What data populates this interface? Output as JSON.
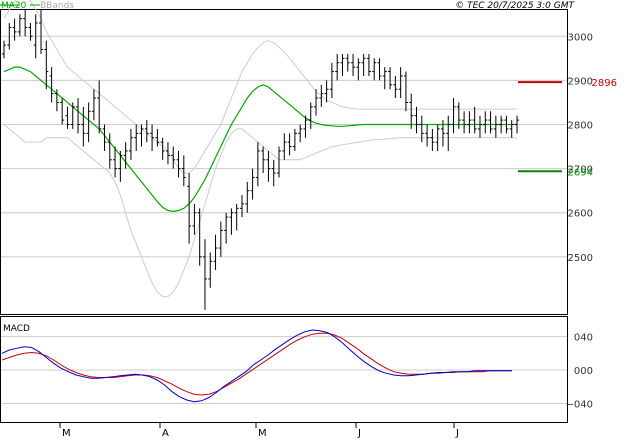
{
  "header": {
    "legend_ma": "MA20",
    "legend_bb": "BBands",
    "copyright": "© TEC 20/7/2025 3:0 GMT"
  },
  "price_panel": {
    "y_ticks": [
      "3000",
      "2900",
      "2800",
      "2700",
      "2600",
      "2500"
    ],
    "resistance_label": "2896",
    "support_label": "2694"
  },
  "macd_panel": {
    "title": "MACD",
    "y_ticks": [
      "040",
      "000",
      "−040"
    ]
  },
  "x_axis": {
    "months": [
      "M",
      "A",
      "M",
      "J",
      "J"
    ]
  },
  "colors": {
    "ma": "#00aa00",
    "bbands": "#cccccc",
    "resistance": "#cc0000",
    "support": "#008800",
    "macd": "#0000cc",
    "signal": "#cc0000",
    "candle": "#000000",
    "grid": "#cccccc"
  },
  "chart_data": [
    {
      "type": "line",
      "title": "",
      "y_range": [
        2375,
        3055
      ],
      "y_ticks": [
        3000,
        2900,
        2800,
        2700,
        2600,
        2500
      ],
      "x_categories": [
        "M",
        "A",
        "M",
        "J",
        "J"
      ],
      "ohlc": [
        [
          2960,
          2990,
          2950,
          2980
        ],
        [
          2980,
          3030,
          2970,
          3020
        ],
        [
          3020,
          3040,
          2990,
          3010
        ],
        [
          3010,
          3050,
          3000,
          3040
        ],
        [
          3040,
          3060,
          3000,
          3020
        ],
        [
          3020,
          3030,
          2990,
          3000
        ],
        [
          2980,
          3050,
          2950,
          3030
        ],
        [
          3030,
          3060,
          2960,
          2970
        ],
        [
          2970,
          2990,
          2880,
          2920
        ],
        [
          2910,
          2930,
          2850,
          2870
        ],
        [
          2870,
          2880,
          2830,
          2850
        ],
        [
          2850,
          2860,
          2800,
          2810
        ],
        [
          2820,
          2840,
          2790,
          2800
        ],
        [
          2800,
          2850,
          2790,
          2840
        ],
        [
          2840,
          2860,
          2780,
          2800
        ],
        [
          2800,
          2840,
          2750,
          2780
        ],
        [
          2780,
          2850,
          2760,
          2830
        ],
        [
          2830,
          2880,
          2810,
          2860
        ],
        [
          2860,
          2900,
          2780,
          2790
        ],
        [
          2790,
          2800,
          2740,
          2760
        ],
        [
          2760,
          2780,
          2700,
          2720
        ],
        [
          2720,
          2750,
          2680,
          2700
        ],
        [
          2700,
          2740,
          2670,
          2730
        ],
        [
          2730,
          2760,
          2700,
          2740
        ],
        [
          2740,
          2790,
          2720,
          2770
        ],
        [
          2770,
          2800,
          2740,
          2780
        ],
        [
          2780,
          2800,
          2750,
          2790
        ],
        [
          2790,
          2810,
          2760,
          2780
        ],
        [
          2780,
          2800,
          2740,
          2770
        ],
        [
          2770,
          2790,
          2750,
          2760
        ],
        [
          2760,
          2770,
          2720,
          2740
        ],
        [
          2740,
          2760,
          2710,
          2730
        ],
        [
          2730,
          2750,
          2700,
          2720
        ],
        [
          2720,
          2740,
          2680,
          2700
        ],
        [
          2700,
          2730,
          2660,
          2680
        ],
        [
          2660,
          2690,
          2530,
          2570
        ],
        [
          2570,
          2620,
          2550,
          2600
        ],
        [
          2600,
          2610,
          2480,
          2500
        ],
        [
          2500,
          2540,
          2380,
          2450
        ],
        [
          2450,
          2510,
          2430,
          2490
        ],
        [
          2490,
          2550,
          2470,
          2520
        ],
        [
          2520,
          2580,
          2500,
          2560
        ],
        [
          2560,
          2600,
          2530,
          2590
        ],
        [
          2590,
          2610,
          2550,
          2600
        ],
        [
          2600,
          2620,
          2560,
          2610
        ],
        [
          2610,
          2640,
          2590,
          2620
        ],
        [
          2620,
          2670,
          2600,
          2650
        ],
        [
          2650,
          2700,
          2630,
          2680
        ],
        [
          2680,
          2760,
          2660,
          2740
        ],
        [
          2740,
          2750,
          2690,
          2720
        ],
        [
          2720,
          2740,
          2670,
          2700
        ],
        [
          2700,
          2720,
          2660,
          2690
        ],
        [
          2690,
          2750,
          2680,
          2740
        ],
        [
          2740,
          2780,
          2720,
          2760
        ],
        [
          2760,
          2780,
          2730,
          2750
        ],
        [
          2750,
          2790,
          2740,
          2780
        ],
        [
          2780,
          2800,
          2760,
          2790
        ],
        [
          2790,
          2820,
          2770,
          2810
        ],
        [
          2810,
          2850,
          2790,
          2840
        ],
        [
          2840,
          2880,
          2820,
          2860
        ],
        [
          2860,
          2890,
          2840,
          2870
        ],
        [
          2870,
          2900,
          2850,
          2880
        ],
        [
          2880,
          2940,
          2860,
          2920
        ],
        [
          2920,
          2960,
          2900,
          2940
        ],
        [
          2940,
          2960,
          2910,
          2950
        ],
        [
          2950,
          2960,
          2920,
          2940
        ],
        [
          2940,
          2960,
          2910,
          2930
        ],
        [
          2930,
          2950,
          2900,
          2940
        ],
        [
          2940,
          2960,
          2910,
          2950
        ],
        [
          2950,
          2960,
          2910,
          2920
        ],
        [
          2920,
          2950,
          2900,
          2940
        ],
        [
          2940,
          2950,
          2900,
          2910
        ],
        [
          2910,
          2930,
          2880,
          2920
        ],
        [
          2920,
          2930,
          2880,
          2890
        ],
        [
          2890,
          2910,
          2860,
          2880
        ],
        [
          2880,
          2930,
          2860,
          2910
        ],
        [
          2910,
          2920,
          2830,
          2850
        ],
        [
          2850,
          2870,
          2790,
          2820
        ],
        [
          2820,
          2840,
          2780,
          2800
        ],
        [
          2800,
          2820,
          2760,
          2780
        ],
        [
          2780,
          2800,
          2750,
          2770
        ],
        [
          2770,
          2790,
          2740,
          2760
        ],
        [
          2760,
          2800,
          2740,
          2790
        ],
        [
          2790,
          2810,
          2750,
          2780
        ],
        [
          2780,
          2820,
          2740,
          2800
        ],
        [
          2800,
          2860,
          2780,
          2840
        ],
        [
          2840,
          2850,
          2790,
          2810
        ],
        [
          2810,
          2830,
          2780,
          2800
        ],
        [
          2800,
          2830,
          2780,
          2810
        ],
        [
          2810,
          2840,
          2780,
          2790
        ],
        [
          2790,
          2820,
          2770,
          2800
        ],
        [
          2800,
          2830,
          2780,
          2810
        ],
        [
          2810,
          2830,
          2780,
          2790
        ],
        [
          2790,
          2820,
          2770,
          2800
        ],
        [
          2800,
          2820,
          2780,
          2810
        ],
        [
          2810,
          2820,
          2780,
          2790
        ],
        [
          2790,
          2810,
          2770,
          2800
        ],
        [
          2800,
          2820,
          2780,
          2810
        ]
      ],
      "ma20": [
        2920,
        2925,
        2930,
        2930,
        2925,
        2920,
        2910,
        2900,
        2890,
        2880,
        2870,
        2860,
        2850,
        2840,
        2830,
        2820,
        2810,
        2800,
        2790,
        2775,
        2760,
        2745,
        2730,
        2715,
        2700,
        2685,
        2670,
        2655,
        2640,
        2625,
        2612,
        2605,
        2603,
        2605,
        2610,
        2620,
        2635,
        2655,
        2675,
        2700,
        2725,
        2750,
        2775,
        2800,
        2820,
        2840,
        2860,
        2875,
        2885,
        2890,
        2885,
        2875,
        2865,
        2855,
        2845,
        2835,
        2825,
        2815,
        2808,
        2803,
        2800,
        2798,
        2797,
        2796,
        2796,
        2797,
        2798,
        2799,
        2800,
        2800,
        2800,
        2800,
        2800,
        2800,
        2800,
        2800,
        2800,
        2800,
        2800,
        2800,
        2800,
        2800,
        2800,
        2800,
        2800,
        2800,
        2800,
        2800,
        2800,
        2800,
        2800,
        2800,
        2800,
        2800,
        2800,
        2800,
        2800,
        2800
      ],
      "bb_upper": [
        3040,
        3060,
        3080,
        3090,
        3090,
        3080,
        3060,
        3040,
        3010,
        2990,
        2970,
        2950,
        2930,
        2920,
        2910,
        2900,
        2890,
        2880,
        2870,
        2860,
        2850,
        2840,
        2830,
        2820,
        2810,
        2800,
        2790,
        2780,
        2770,
        2760,
        2750,
        2740,
        2720,
        2700,
        2690,
        2690,
        2700,
        2720,
        2740,
        2760,
        2780,
        2800,
        2830,
        2860,
        2890,
        2920,
        2940,
        2960,
        2975,
        2985,
        2990,
        2985,
        2975,
        2965,
        2950,
        2935,
        2920,
        2905,
        2890,
        2875,
        2865,
        2855,
        2850,
        2845,
        2840,
        2838,
        2836,
        2835,
        2835,
        2835,
        2835,
        2835,
        2835,
        2835,
        2835,
        2835,
        2835,
        2835,
        2835,
        2835,
        2835,
        2835,
        2835,
        2835,
        2835,
        2835,
        2835,
        2835,
        2835,
        2835,
        2835,
        2835,
        2835,
        2835,
        2835,
        2835,
        2835,
        2835
      ],
      "bb_lower": [
        2800,
        2790,
        2780,
        2770,
        2760,
        2760,
        2760,
        2760,
        2770,
        2770,
        2770,
        2770,
        2770,
        2760,
        2750,
        2740,
        2730,
        2720,
        2710,
        2700,
        2690,
        2670,
        2640,
        2600,
        2560,
        2530,
        2500,
        2470,
        2440,
        2420,
        2410,
        2410,
        2420,
        2440,
        2470,
        2500,
        2540,
        2580,
        2620,
        2660,
        2700,
        2730,
        2760,
        2780,
        2790,
        2790,
        2780,
        2770,
        2760,
        2750,
        2740,
        2730,
        2720,
        2720,
        2720,
        2720,
        2720,
        2725,
        2730,
        2735,
        2740,
        2745,
        2750,
        2752,
        2754,
        2756,
        2758,
        2760,
        2762,
        2764,
        2765,
        2766,
        2767,
        2768,
        2769,
        2770,
        2770,
        2770,
        2770,
        2770,
        2770,
        2770,
        2770,
        2770,
        2770,
        2770,
        2770,
        2770,
        2770,
        2770,
        2770,
        2770,
        2770,
        2770,
        2770,
        2770,
        2770,
        2770
      ],
      "resistance": 2896,
      "support": 2694
    },
    {
      "type": "line",
      "title": "MACD",
      "y_range": [
        -60,
        60
      ],
      "y_ticks": [
        40,
        0,
        -40
      ],
      "series": [
        {
          "values": [
            20,
            24,
            26,
            28,
            27,
            22,
            15,
            8,
            2,
            -2,
            -6,
            -8,
            -10,
            -10,
            -9,
            -8,
            -7,
            -6,
            -5,
            -6,
            -8,
            -12,
            -18,
            -26,
            -32,
            -36,
            -38,
            -37,
            -33,
            -27,
            -20,
            -14,
            -8,
            -2,
            6,
            12,
            18,
            25,
            31,
            37,
            42,
            46,
            48,
            47,
            45,
            40,
            33,
            25,
            17,
            10,
            4,
            -1,
            -4,
            -6,
            -7,
            -7,
            -6,
            -5,
            -4,
            -3,
            -3,
            -2,
            -2,
            -2,
            -1,
            -1,
            -1,
            -1,
            -1,
            -1
          ]
        },
        {
          "values": [
            12,
            15,
            18,
            20,
            21,
            20,
            17,
            12,
            6,
            1,
            -3,
            -6,
            -8,
            -9,
            -9,
            -9,
            -8,
            -7,
            -6,
            -6,
            -7,
            -9,
            -13,
            -17,
            -22,
            -26,
            -29,
            -30,
            -29,
            -26,
            -21,
            -16,
            -11,
            -5,
            1,
            7,
            13,
            19,
            25,
            31,
            36,
            40,
            43,
            44,
            44,
            42,
            38,
            32,
            26,
            19,
            13,
            7,
            2,
            -2,
            -4,
            -5,
            -5,
            -5,
            -4,
            -4,
            -3,
            -3,
            -2,
            -2,
            -2,
            -2,
            -1,
            -1,
            -1,
            -1
          ]
        }
      ]
    }
  ]
}
